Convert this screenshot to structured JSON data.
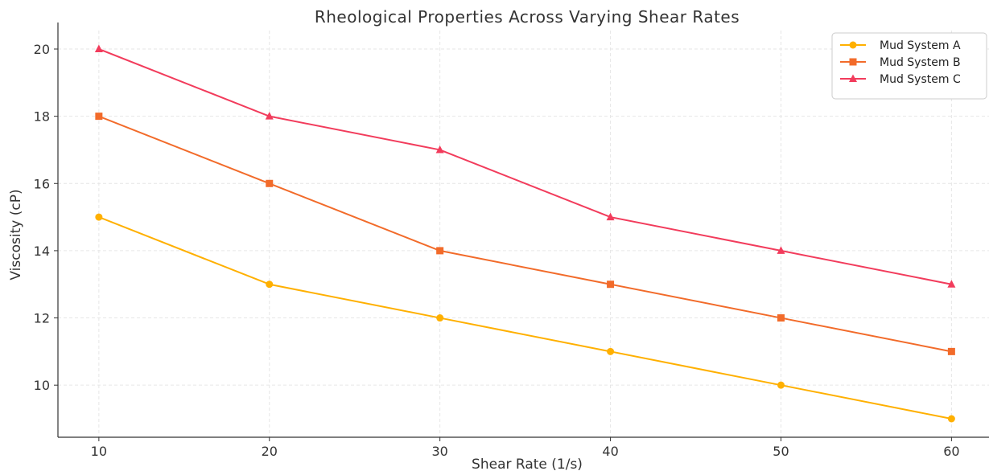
{
  "chart_data": {
    "type": "line",
    "title": "Rheological Properties Across Varying Shear Rates",
    "xlabel": "Shear Rate (1/s)",
    "ylabel": "Viscosity (cP)",
    "x": [
      10,
      20,
      30,
      40,
      50,
      60
    ],
    "xticks": [
      10,
      20,
      30,
      40,
      50,
      60
    ],
    "yticks": [
      10,
      12,
      14,
      16,
      18,
      20
    ],
    "xlim": [
      7.6,
      62.2
    ],
    "ylim": [
      8.45,
      20.55
    ],
    "grid": true,
    "legend_position": "top-right",
    "series": [
      {
        "name": "Mud System A",
        "values": [
          15,
          13,
          12,
          11,
          10,
          9
        ],
        "color": "#FFB000",
        "marker": "circle"
      },
      {
        "name": "Mud System B",
        "values": [
          18,
          16,
          14,
          13,
          12,
          11
        ],
        "color": "#F26B2A",
        "marker": "square"
      },
      {
        "name": "Mud System C",
        "values": [
          20,
          18,
          17,
          15,
          14,
          13
        ],
        "color": "#F23C5C",
        "marker": "triangle"
      }
    ]
  }
}
